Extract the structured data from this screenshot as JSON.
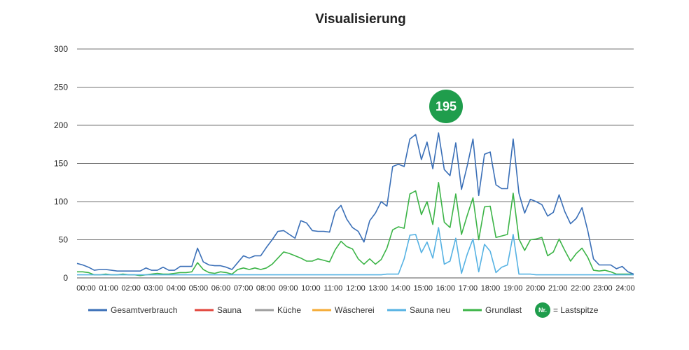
{
  "chart_data": {
    "type": "line",
    "title": "Visualisierung",
    "xlabel": "",
    "ylabel": "",
    "ylim": [
      0,
      300
    ],
    "yticks": [
      0,
      50,
      100,
      150,
      200,
      250,
      300
    ],
    "grid": true,
    "legend_position": "bottom",
    "x_tick_labels": [
      "00:00",
      "01:00",
      "02:00",
      "03:00",
      "04:00",
      "05:00",
      "06:00",
      "07:00",
      "08:00",
      "09:00",
      "10:00",
      "11:00",
      "12:00",
      "13:00",
      "14:00",
      "15:00",
      "16:00",
      "17:00",
      "18:00",
      "19:00",
      "20:00",
      "21:00",
      "22:00",
      "23:00",
      "24:00"
    ],
    "series": [
      {
        "name": "Gesamtverbrauch",
        "color": "#3a6fb7",
        "values": [
          19,
          17,
          14,
          10,
          11,
          11,
          10,
          9,
          9,
          9,
          9,
          9,
          13,
          10,
          10,
          14,
          10,
          10,
          15,
          15,
          15,
          39,
          21,
          17,
          16,
          16,
          14,
          11,
          20,
          29,
          26,
          29,
          29,
          40,
          50,
          61,
          62,
          57,
          52,
          75,
          72,
          62,
          61,
          61,
          60,
          87,
          95,
          77,
          66,
          61,
          47,
          75,
          85,
          100,
          94,
          146,
          149,
          146,
          182,
          188,
          155,
          178,
          143,
          190,
          142,
          134,
          177,
          116,
          147,
          182,
          108,
          162,
          165,
          122,
          117,
          117,
          182,
          111,
          85,
          103,
          100,
          96,
          81,
          86,
          109,
          87,
          71,
          78,
          92,
          62,
          25,
          17,
          17,
          17,
          12,
          15,
          8,
          5
        ]
      },
      {
        "name": "Sauna",
        "color": "#e2453c",
        "values": []
      },
      {
        "name": "Küche",
        "color": "#9e9e9e",
        "values": []
      },
      {
        "name": "Wäscherei",
        "color": "#f5ab35",
        "values": []
      },
      {
        "name": "Sauna neu",
        "color": "#56b2e3",
        "values": [
          4,
          4,
          4,
          4,
          4,
          4,
          4,
          4,
          4,
          4,
          4,
          4,
          4,
          4,
          4,
          4,
          4,
          4,
          4,
          4,
          4,
          4,
          4,
          4,
          4,
          4,
          4,
          4,
          4,
          4,
          4,
          4,
          4,
          4,
          4,
          4,
          4,
          4,
          4,
          4,
          4,
          4,
          4,
          4,
          4,
          4,
          4,
          4,
          4,
          4,
          4,
          4,
          4,
          4,
          5,
          5,
          5,
          25,
          56,
          57,
          33,
          47,
          26,
          66,
          18,
          22,
          52,
          6,
          31,
          51,
          8,
          44,
          35,
          7,
          14,
          17,
          57,
          5,
          5,
          5,
          4,
          4,
          4,
          4,
          4,
          4,
          4,
          4,
          4,
          4,
          4,
          4,
          4,
          4,
          4,
          4,
          4,
          4
        ]
      },
      {
        "name": "Grundlast",
        "color": "#3cb447",
        "values": [
          8,
          8,
          7,
          4,
          4,
          5,
          4,
          4,
          5,
          4,
          4,
          3,
          4,
          5,
          6,
          5,
          5,
          6,
          7,
          7,
          8,
          20,
          11,
          7,
          6,
          8,
          7,
          5,
          11,
          13,
          11,
          13,
          11,
          13,
          18,
          26,
          34,
          32,
          29,
          26,
          22,
          22,
          25,
          23,
          21,
          37,
          48,
          41,
          38,
          25,
          18,
          25,
          18,
          24,
          39,
          63,
          67,
          65,
          110,
          114,
          83,
          100,
          70,
          125,
          73,
          66,
          110,
          57,
          82,
          105,
          50,
          93,
          94,
          53,
          55,
          57,
          111,
          51,
          36,
          50,
          51,
          53,
          29,
          34,
          51,
          36,
          22,
          32,
          39,
          27,
          10,
          9,
          10,
          8,
          5,
          5,
          5,
          5
        ]
      }
    ],
    "peak_marker": {
      "value": "195",
      "color": "#1f9d4c"
    },
    "legend_note": {
      "badge": "Nr.",
      "text": "= Lastspitze"
    }
  }
}
